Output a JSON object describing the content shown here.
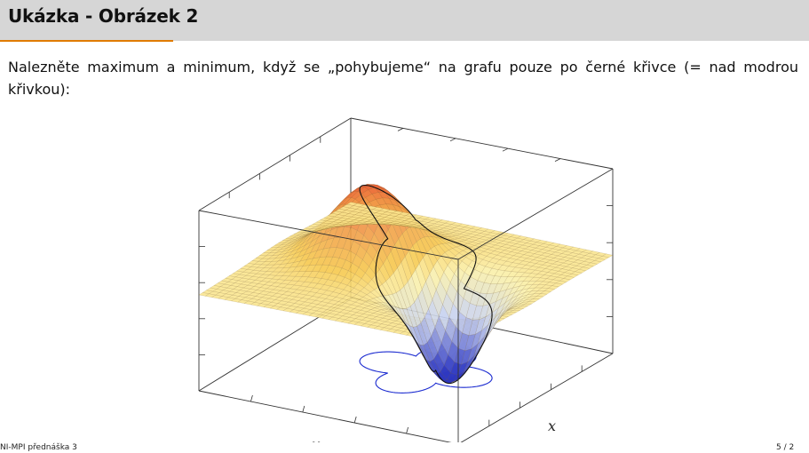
{
  "slide": {
    "title": "Ukázka - Obrázek 2",
    "body": "Nalezněte maximum a minimum, když se „pohybujeme“ na grafu pouze po černé křivce (= nad modrou křivkou):"
  },
  "figure": {
    "x_axis_label": "x",
    "y_axis_label": "y",
    "colors": {
      "surface_high": "#e84a30",
      "surface_mid": "#f6c94e",
      "surface_low": "#2a34c0",
      "black_curve": "#111111",
      "blue_curve": "#1a2ad0"
    }
  },
  "footer": {
    "left": "NI-MPI přednáška 3",
    "right": "5 / 2"
  }
}
